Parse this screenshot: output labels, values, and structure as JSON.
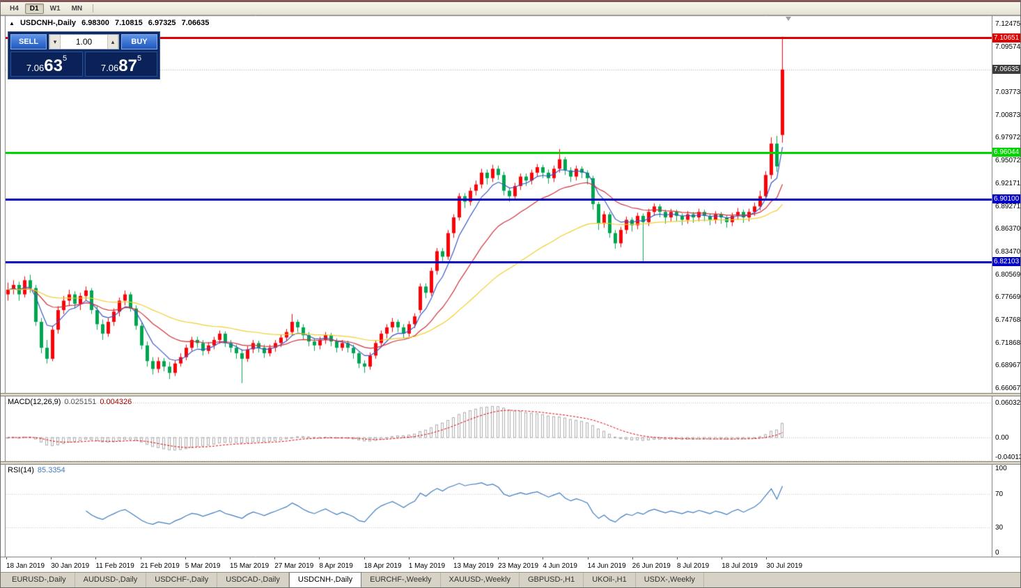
{
  "toolbar": {
    "timeframes": [
      "H4",
      "D1",
      "W1",
      "MN"
    ],
    "active": "D1"
  },
  "title": {
    "symbol": "USDCNH-,Daily",
    "open": "6.98300",
    "high": "7.10815",
    "low": "6.97325",
    "close": "7.06635"
  },
  "icons": {
    "collapse": "▲",
    "volume_up": "▴",
    "volume_down": "▾"
  },
  "trade_panel": {
    "sell_label": "SELL",
    "buy_label": "BUY",
    "volume": "1.00",
    "bid": {
      "prefix": "7.06",
      "big": "63",
      "sup": "5"
    },
    "ask": {
      "prefix": "7.06",
      "big": "87",
      "sup": "5"
    }
  },
  "tabs": {
    "items": [
      "EURUSD-,Daily",
      "AUDUSD-,Daily",
      "USDCHF-,Daily",
      "USDCAD-,Daily",
      "USDCNH-,Daily",
      "EURCHF-,Weekly",
      "XAUUSD-,Weekly",
      "GBPUSD-,H1",
      "UKOil-,H1",
      "USDX-,Weekly"
    ],
    "active_index": 4
  },
  "chart_data": {
    "type": "candlestick",
    "symbol": "USDCNH-",
    "timeframe": "Daily",
    "current_bar": {
      "open": 6.983,
      "high": 7.10815,
      "low": 6.97325,
      "close": 7.06635
    },
    "ylim": [
      6.652,
      7.134
    ],
    "price_axis_ticks": [
      "7.12475",
      "7.09574",
      "7.06674",
      "7.03773",
      "7.00873",
      "6.97972",
      "6.95072",
      "6.92171",
      "6.89271",
      "6.86370",
      "6.83470",
      "6.80569",
      "6.77669",
      "6.74768",
      "6.71868",
      "6.68967",
      "6.66067"
    ],
    "horizontal_levels": [
      {
        "label": "7.10651",
        "price": 7.10651,
        "color": "#e00000"
      },
      {
        "label": "6.96044",
        "price": 6.96044,
        "color": "#00d500"
      },
      {
        "label": "6.90100",
        "price": 6.901,
        "color": "#0000c8"
      },
      {
        "label": "6.82103",
        "price": 6.82103,
        "color": "#0000c8"
      }
    ],
    "bid_badge": {
      "label": "7.06635",
      "price": 7.06635,
      "color": "#3c3c3c"
    },
    "date_axis": [
      "18 Jan 2019",
      "30 Jan 2019",
      "11 Feb 2019",
      "21 Feb 2019",
      "5 Mar 2019",
      "15 Mar 2019",
      "27 Mar 2019",
      "8 Apr 2019",
      "18 Apr 2019",
      "1 May 2019",
      "13 May 2019",
      "23 May 2019",
      "4 Jun 2019",
      "14 Jun 2019",
      "26 Jun 2019",
      "8 Jul 2019",
      "18 Jul 2019",
      "30 Jul 2019"
    ],
    "colors": {
      "bull": "#fb0207",
      "bear": "#00a550"
    },
    "moving_averages": [
      {
        "name": "ma-fast",
        "period": 6,
        "color": "#3a57c8"
      },
      {
        "name": "ma-mid",
        "period": 18,
        "color": "#d03038"
      },
      {
        "name": "ma-slow",
        "period": 45,
        "color": "#efce2a"
      }
    ],
    "macd": {
      "label": "MACD(12,26,9)",
      "fast": 12,
      "slow": 26,
      "signal": 9,
      "value_main": "0.025151",
      "value_signal": "0.004326",
      "axis": [
        {
          "label": "0.060329",
          "value": 0.060329
        },
        {
          "label": "0.00",
          "value": 0
        },
        {
          "label": "-0.040135",
          "value": -0.040135
        }
      ],
      "hist_color": "#acacac",
      "signal_color": "#e00000"
    },
    "rsi": {
      "label": "RSI(14)",
      "period": 14,
      "value": "85.3354",
      "axis": [
        {
          "label": "100",
          "value": 100
        },
        {
          "label": "70",
          "value": 70
        },
        {
          "label": "30",
          "value": 30
        },
        {
          "label": "0",
          "value": 0
        }
      ],
      "levels": [
        70,
        30
      ],
      "color": "#3e7bbf"
    },
    "candles": [
      [
        6.78,
        6.795,
        6.772,
        6.786
      ],
      [
        6.786,
        6.798,
        6.78,
        6.792
      ],
      [
        6.792,
        6.796,
        6.772,
        6.78
      ],
      [
        6.78,
        6.803,
        6.776,
        6.798
      ],
      [
        6.798,
        6.805,
        6.782,
        6.788
      ],
      [
        6.788,
        6.792,
        6.74,
        6.745
      ],
      [
        6.745,
        6.75,
        6.705,
        6.712
      ],
      [
        6.712,
        6.722,
        6.692,
        6.698
      ],
      [
        6.698,
        6.74,
        6.695,
        6.735
      ],
      [
        6.735,
        6.765,
        6.73,
        6.76
      ],
      [
        6.76,
        6.778,
        6.755,
        6.772
      ],
      [
        6.772,
        6.786,
        6.765,
        6.78
      ],
      [
        6.78,
        6.784,
        6.762,
        6.768
      ],
      [
        6.768,
        6.782,
        6.76,
        6.778
      ],
      [
        6.778,
        6.79,
        6.772,
        6.785
      ],
      [
        6.785,
        6.788,
        6.755,
        6.76
      ],
      [
        6.76,
        6.765,
        6.735,
        6.742
      ],
      [
        6.742,
        6.748,
        6.722,
        6.73
      ],
      [
        6.73,
        6.75,
        6.726,
        6.745
      ],
      [
        6.745,
        6.762,
        6.74,
        6.758
      ],
      [
        6.758,
        6.776,
        6.752,
        6.772
      ],
      [
        6.772,
        6.785,
        6.766,
        6.78
      ],
      [
        6.78,
        6.783,
        6.758,
        6.762
      ],
      [
        6.762,
        6.766,
        6.735,
        6.74
      ],
      [
        6.74,
        6.744,
        6.71,
        6.715
      ],
      [
        6.715,
        6.72,
        6.688,
        6.695
      ],
      [
        6.695,
        6.7,
        6.678,
        6.685
      ],
      [
        6.685,
        6.7,
        6.68,
        6.695
      ],
      [
        6.695,
        6.699,
        6.682,
        6.688
      ],
      [
        6.688,
        6.694,
        6.672,
        6.68
      ],
      [
        6.68,
        6.696,
        6.676,
        6.692
      ],
      [
        6.692,
        6.705,
        6.688,
        6.7
      ],
      [
        6.7,
        6.716,
        6.696,
        6.712
      ],
      [
        6.712,
        6.726,
        6.708,
        6.722
      ],
      [
        6.722,
        6.726,
        6.712,
        6.718
      ],
      [
        6.718,
        6.722,
        6.702,
        6.708
      ],
      [
        6.708,
        6.719,
        6.704,
        6.715
      ],
      [
        6.715,
        6.726,
        6.71,
        6.722
      ],
      [
        6.722,
        6.734,
        6.717,
        6.73
      ],
      [
        6.73,
        6.733,
        6.713,
        6.718
      ],
      [
        6.718,
        6.722,
        6.706,
        6.712
      ],
      [
        6.712,
        6.716,
        6.698,
        6.705
      ],
      [
        6.705,
        6.71,
        6.667,
        6.698
      ],
      [
        6.698,
        6.714,
        6.694,
        6.71
      ],
      [
        6.71,
        6.722,
        6.705,
        6.718
      ],
      [
        6.718,
        6.721,
        6.706,
        6.712
      ],
      [
        6.712,
        6.716,
        6.699,
        6.705
      ],
      [
        6.705,
        6.716,
        6.701,
        6.712
      ],
      [
        6.712,
        6.722,
        6.707,
        6.718
      ],
      [
        6.718,
        6.729,
        6.713,
        6.725
      ],
      [
        6.725,
        6.736,
        6.72,
        6.732
      ],
      [
        6.732,
        6.755,
        6.728,
        6.745
      ],
      [
        6.745,
        6.748,
        6.732,
        6.738
      ],
      [
        6.738,
        6.742,
        6.722,
        6.728
      ],
      [
        6.728,
        6.732,
        6.714,
        6.72
      ],
      [
        6.72,
        6.724,
        6.708,
        6.715
      ],
      [
        6.715,
        6.726,
        6.71,
        6.722
      ],
      [
        6.722,
        6.732,
        6.717,
        6.728
      ],
      [
        6.728,
        6.731,
        6.714,
        6.72
      ],
      [
        6.72,
        6.724,
        6.706,
        6.712
      ],
      [
        6.712,
        6.722,
        6.708,
        6.718
      ],
      [
        6.718,
        6.721,
        6.706,
        6.712
      ],
      [
        6.712,
        6.716,
        6.698,
        6.705
      ],
      [
        6.705,
        6.708,
        6.686,
        6.692
      ],
      [
        6.692,
        6.696,
        6.68,
        6.688
      ],
      [
        6.688,
        6.706,
        6.684,
        6.702
      ],
      [
        6.702,
        6.722,
        6.698,
        6.718
      ],
      [
        6.718,
        6.734,
        6.713,
        6.73
      ],
      [
        6.73,
        6.742,
        6.724,
        6.738
      ],
      [
        6.738,
        6.75,
        6.732,
        6.745
      ],
      [
        6.745,
        6.748,
        6.732,
        6.738
      ],
      [
        6.738,
        6.742,
        6.724,
        6.73
      ],
      [
        6.73,
        6.746,
        6.726,
        6.742
      ],
      [
        6.742,
        6.756,
        6.737,
        6.752
      ],
      [
        6.76,
        6.794,
        6.756,
        6.79
      ],
      [
        6.79,
        6.794,
        6.775,
        6.782
      ],
      [
        6.782,
        6.814,
        6.778,
        6.81
      ],
      [
        6.81,
        6.839,
        6.805,
        6.835
      ],
      [
        6.835,
        6.839,
        6.82,
        6.828
      ],
      [
        6.828,
        6.862,
        6.824,
        6.858
      ],
      [
        6.858,
        6.882,
        6.852,
        6.878
      ],
      [
        6.878,
        6.909,
        6.874,
        6.905
      ],
      [
        6.905,
        6.909,
        6.89,
        6.898
      ],
      [
        6.898,
        6.916,
        6.893,
        6.912
      ],
      [
        6.912,
        6.925,
        6.906,
        6.92
      ],
      [
        6.92,
        6.94,
        6.915,
        6.935
      ],
      [
        6.935,
        6.939,
        6.92,
        6.928
      ],
      [
        6.928,
        6.945,
        6.923,
        6.94
      ],
      [
        6.94,
        6.944,
        6.926,
        6.932
      ],
      [
        6.932,
        6.936,
        6.906,
        6.912
      ],
      [
        6.912,
        6.916,
        6.898,
        6.905
      ],
      [
        6.905,
        6.922,
        6.9,
        6.918
      ],
      [
        6.918,
        6.934,
        6.913,
        6.93
      ],
      [
        6.93,
        6.934,
        6.918,
        6.925
      ],
      [
        6.925,
        6.939,
        6.92,
        6.935
      ],
      [
        6.935,
        6.946,
        6.93,
        6.942
      ],
      [
        6.942,
        6.945,
        6.928,
        6.935
      ],
      [
        6.935,
        6.939,
        6.921,
        6.928
      ],
      [
        6.928,
        6.944,
        6.923,
        6.94
      ],
      [
        6.94,
        6.965,
        6.935,
        6.952
      ],
      [
        6.952,
        6.955,
        6.932,
        6.938
      ],
      [
        6.938,
        6.942,
        6.923,
        6.93
      ],
      [
        6.93,
        6.944,
        6.925,
        6.94
      ],
      [
        6.94,
        6.943,
        6.928,
        6.935
      ],
      [
        6.935,
        6.938,
        6.92,
        6.928
      ],
      [
        6.928,
        6.931,
        6.888,
        6.895
      ],
      [
        6.895,
        6.898,
        6.862,
        6.87
      ],
      [
        6.87,
        6.886,
        6.865,
        6.882
      ],
      [
        6.882,
        6.885,
        6.852,
        6.858
      ],
      [
        6.858,
        6.862,
        6.838,
        6.845
      ],
      [
        6.845,
        6.866,
        6.84,
        6.862
      ],
      [
        6.862,
        6.879,
        6.857,
        6.875
      ],
      [
        6.875,
        6.878,
        6.86,
        6.868
      ],
      [
        6.868,
        6.884,
        6.863,
        6.88
      ],
      [
        6.88,
        6.883,
        6.822,
        6.872
      ],
      [
        6.872,
        6.889,
        6.867,
        6.885
      ],
      [
        6.885,
        6.896,
        6.88,
        6.892
      ],
      [
        6.892,
        6.895,
        6.878,
        6.885
      ],
      [
        6.885,
        6.888,
        6.87,
        6.878
      ],
      [
        6.878,
        6.889,
        6.873,
        6.885
      ],
      [
        6.885,
        6.888,
        6.873,
        6.88
      ],
      [
        6.88,
        6.883,
        6.868,
        6.875
      ],
      [
        6.875,
        6.886,
        6.87,
        6.882
      ],
      [
        6.882,
        6.885,
        6.871,
        6.878
      ],
      [
        6.878,
        6.889,
        6.873,
        6.885
      ],
      [
        6.885,
        6.888,
        6.873,
        6.88
      ],
      [
        6.88,
        6.883,
        6.868,
        6.875
      ],
      [
        6.875,
        6.886,
        6.87,
        6.882
      ],
      [
        6.882,
        6.885,
        6.87,
        6.878
      ],
      [
        6.878,
        6.881,
        6.865,
        6.872
      ],
      [
        6.872,
        6.884,
        6.867,
        6.88
      ],
      [
        6.88,
        6.89,
        6.875,
        6.885
      ],
      [
        6.885,
        6.888,
        6.871,
        6.878
      ],
      [
        6.878,
        6.889,
        6.873,
        6.885
      ],
      [
        6.885,
        6.897,
        6.88,
        6.892
      ],
      [
        6.892,
        6.912,
        6.887,
        6.905
      ],
      [
        6.905,
        6.937,
        6.9,
        6.932
      ],
      [
        6.932,
        6.98,
        6.927,
        6.972
      ],
      [
        6.972,
        6.982,
        6.936,
        6.943
      ],
      [
        6.983,
        7.10815,
        6.97325,
        7.06635
      ]
    ]
  }
}
